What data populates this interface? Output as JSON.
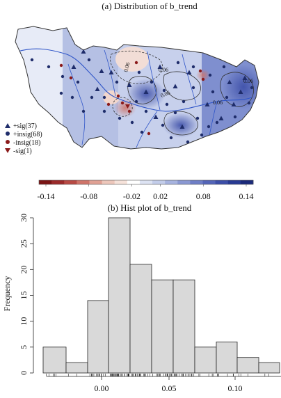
{
  "panel_a": {
    "title": "(a) Distribution of b_trend",
    "legend": [
      {
        "label": "+sig(37)",
        "marker": "triangle-up",
        "color": "#1f2d6b"
      },
      {
        "label": "+insig(68)",
        "marker": "circle",
        "color": "#1f2d6b"
      },
      {
        "label": "-insig(18)",
        "marker": "circle",
        "color": "#8b1a1a"
      },
      {
        "label": "-sig(1)",
        "marker": "triangle-down",
        "color": "#8b1a1a"
      }
    ],
    "contour_labels": [
      "0.06",
      "0.06",
      "0.06",
      "0.06",
      "0.06"
    ],
    "colorbar": {
      "ticks": [
        "-0.14",
        "-0.08",
        "-0.02",
        "0.02",
        "0.08",
        "0.14"
      ],
      "colors": [
        "#7a1414",
        "#9b2a2a",
        "#b84a44",
        "#cf7469",
        "#e0a194",
        "#edc7bb",
        "#f6e2da",
        "#ffffff",
        "#dde3f3",
        "#c3cdea",
        "#a7b3df",
        "#8a98d2",
        "#6e7ec6",
        "#5465b8",
        "#3c4ea8",
        "#283a93",
        "#1b2a7a"
      ]
    }
  },
  "chart_data": {
    "type": "bar",
    "title": "(b) Hist plot of b_trend",
    "xlabel": "",
    "ylabel": "Frequency",
    "bins": [
      [
        -0.04,
        -0.02
      ],
      [
        -0.02,
        0.0
      ],
      [
        0.0,
        0.01
      ],
      [
        0.01,
        0.02
      ],
      [
        0.02,
        0.03
      ],
      [
        0.03,
        0.04
      ],
      [
        0.04,
        0.06
      ],
      [
        0.06,
        0.08
      ],
      [
        0.08,
        0.1
      ],
      [
        0.1,
        0.12
      ],
      [
        0.12,
        0.14
      ]
    ],
    "values": [
      5,
      2,
      14,
      30,
      21,
      18,
      18,
      5,
      6,
      3,
      2
    ],
    "xticks": [
      "0.00",
      "0.05",
      "0.10"
    ],
    "yticks": [
      "0",
      "5",
      "10",
      "15",
      "20",
      "25",
      "30"
    ],
    "xlim": [
      -0.04,
      0.14
    ],
    "ylim": [
      0,
      30
    ],
    "bar_color": "#d9d9d9"
  }
}
